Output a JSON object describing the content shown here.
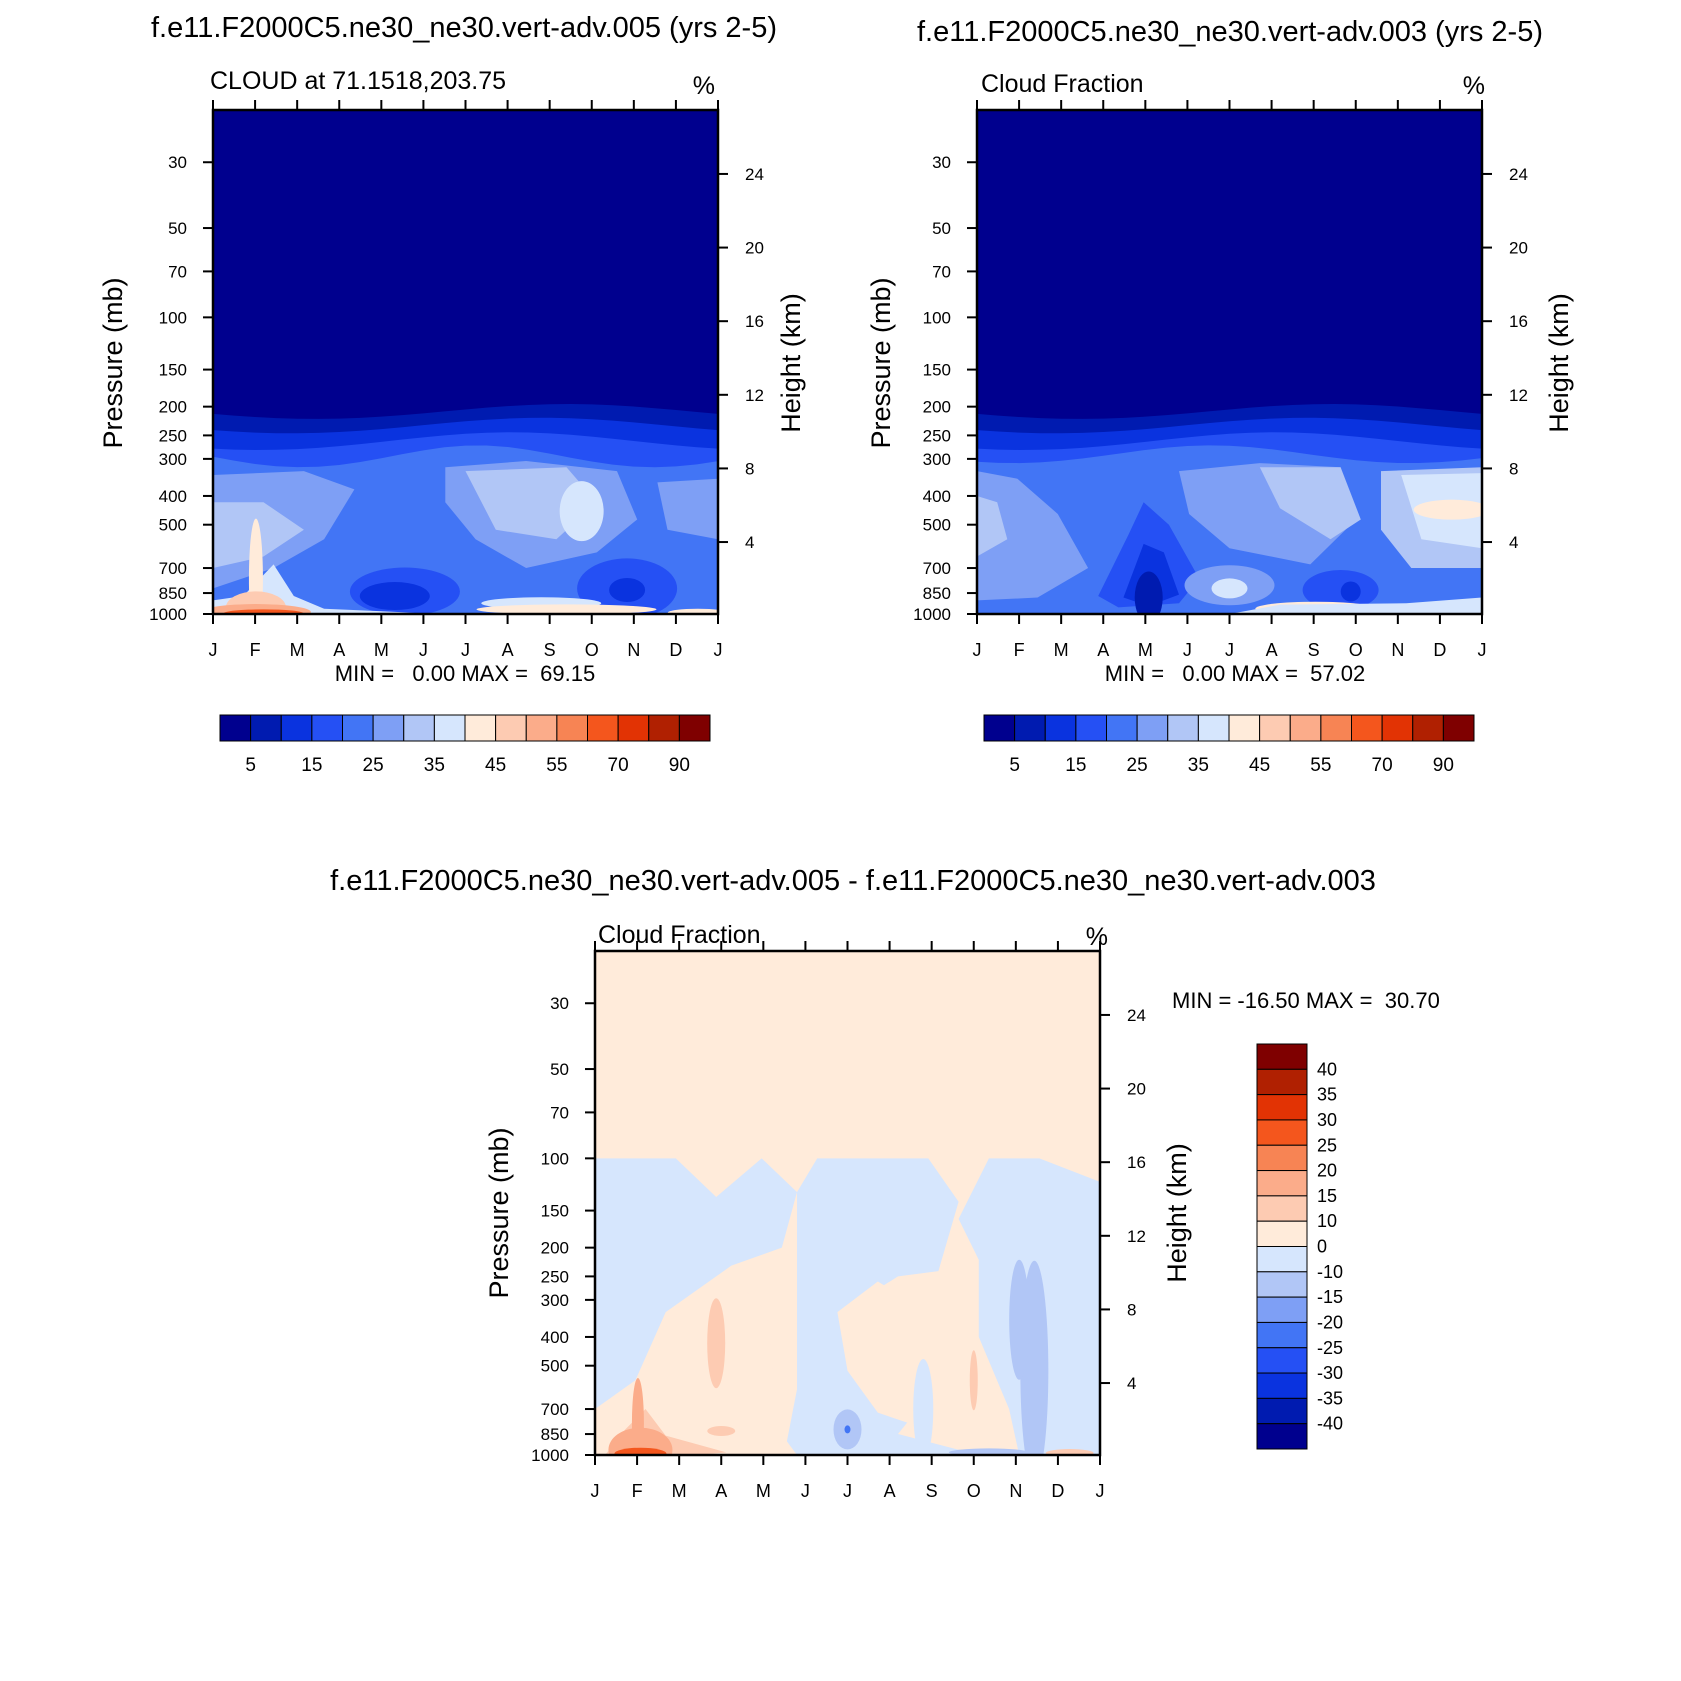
{
  "chart_data": [
    {
      "id": "panel-a",
      "type": "heatmap",
      "title": "f.e11.F2000C5.ne30_ne30.vert-adv.005 (yrs 2-5)",
      "subtitle": "CLOUD at 71.1518,203.75",
      "units": "%",
      "ylabel": "Pressure (mb)",
      "ylabel_right": "Height (km)",
      "x_ticks": [
        "J",
        "F",
        "M",
        "A",
        "M",
        "J",
        "J",
        "A",
        "S",
        "O",
        "N",
        "D",
        "J"
      ],
      "pressure_ticks": [
        30,
        50,
        70,
        100,
        150,
        200,
        250,
        300,
        400,
        500,
        700,
        850,
        1000
      ],
      "height_ticks": [
        4,
        8,
        12,
        16,
        20,
        24
      ],
      "ylim_mb": [
        20,
        1000
      ],
      "stats": "MIN =   0.00 MAX =  69.15",
      "colorbar_labels": [
        "5",
        "15",
        "25",
        "35",
        "45",
        "55",
        "70",
        "90"
      ],
      "levels": [
        0,
        5,
        10,
        15,
        20,
        25,
        30,
        35,
        40,
        45,
        50,
        55,
        60,
        70,
        80,
        90,
        100
      ]
    },
    {
      "id": "panel-b",
      "type": "heatmap",
      "title": "f.e11.F2000C5.ne30_ne30.vert-adv.003 (yrs 2-5)",
      "subtitle": "Cloud Fraction",
      "units": "%",
      "ylabel": "Pressure (mb)",
      "ylabel_right": "Height (km)",
      "x_ticks": [
        "J",
        "F",
        "M",
        "A",
        "M",
        "J",
        "J",
        "A",
        "S",
        "O",
        "N",
        "D",
        "J"
      ],
      "pressure_ticks": [
        30,
        50,
        70,
        100,
        150,
        200,
        250,
        300,
        400,
        500,
        700,
        850,
        1000
      ],
      "height_ticks": [
        4,
        8,
        12,
        16,
        20,
        24
      ],
      "ylim_mb": [
        20,
        1000
      ],
      "stats": "MIN =   0.00 MAX =  57.02",
      "colorbar_labels": [
        "5",
        "15",
        "25",
        "35",
        "45",
        "55",
        "70",
        "90"
      ],
      "levels": [
        0,
        5,
        10,
        15,
        20,
        25,
        30,
        35,
        40,
        45,
        50,
        55,
        60,
        70,
        80,
        90,
        100
      ]
    },
    {
      "id": "panel-c",
      "type": "heatmap",
      "title": "f.e11.F2000C5.ne30_ne30.vert-adv.005 - f.e11.F2000C5.ne30_ne30.vert-adv.003",
      "subtitle": "Cloud Fraction",
      "units": "%",
      "ylabel": "Pressure (mb)",
      "ylabel_right": "Height (km)",
      "x_ticks": [
        "J",
        "F",
        "M",
        "A",
        "M",
        "J",
        "J",
        "A",
        "S",
        "O",
        "N",
        "D",
        "J"
      ],
      "pressure_ticks": [
        30,
        50,
        70,
        100,
        150,
        200,
        250,
        300,
        400,
        500,
        700,
        850,
        1000
      ],
      "height_ticks": [
        4,
        8,
        12,
        16,
        20,
        24
      ],
      "ylim_mb": [
        20,
        1000
      ],
      "stats": "MIN = -16.50 MAX =  30.70",
      "colorbar_labels": [
        "40",
        "35",
        "30",
        "25",
        "20",
        "15",
        "10",
        "0",
        "-10",
        "-15",
        "-20",
        "-25",
        "-30",
        "-35",
        "-40"
      ]
    }
  ],
  "colors": {
    "seq": [
      "#00008e",
      "#001bb0",
      "#0a33df",
      "#2550f4",
      "#4275f5",
      "#7e9ff5",
      "#b1c6f6",
      "#d6e6fd",
      "#ffebda",
      "#fdcbb2",
      "#fbac8a",
      "#f78454",
      "#f4561d",
      "#e23304",
      "#b02001",
      "#7f0000"
    ],
    "div": [
      "#7f0000",
      "#b02001",
      "#e23304",
      "#f4561d",
      "#f78454",
      "#fbac8a",
      "#fdcbb2",
      "#ffebda",
      "#d6e6fd",
      "#b1c6f6",
      "#7e9ff5",
      "#4275f5",
      "#2550f4",
      "#0a33df",
      "#001bb0",
      "#00008e"
    ]
  }
}
